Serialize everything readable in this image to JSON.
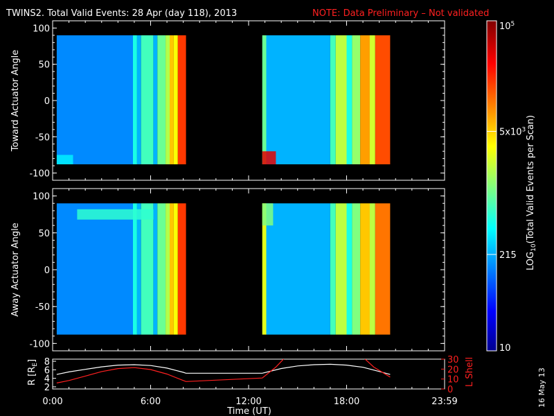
{
  "title": {
    "main": "TWINS2. Total Valid Events: 28 Apr (day 118), 2013",
    "note": "NOTE: Data Preliminary – Not validated",
    "note_color": "#ff2020"
  },
  "footer_date": "16 May 13",
  "chart_data": [
    {
      "type": "heatmap",
      "ylabel": "Toward Actuator Angle",
      "ylim": [
        -110,
        110
      ],
      "yticks": [
        "100",
        "50",
        "0",
        "-50",
        "-100"
      ],
      "xlim_hours": [
        0,
        24
      ],
      "data_y_range": [
        -88,
        90
      ],
      "segments": [
        {
          "start": "00:15",
          "end": "08:10",
          "stripes": [
            {
              "start": "00:15",
              "end": "04:55",
              "level": 0.26
            },
            {
              "start": "04:55",
              "end": "05:10",
              "level": 0.4
            },
            {
              "start": "05:10",
              "end": "05:25",
              "level": 0.3
            },
            {
              "start": "05:25",
              "end": "06:10",
              "level": 0.44
            },
            {
              "start": "06:10",
              "end": "06:25",
              "level": 0.3
            },
            {
              "start": "06:25",
              "end": "06:55",
              "level": 0.48
            },
            {
              "start": "06:55",
              "end": "07:10",
              "level": 0.55
            },
            {
              "start": "07:10",
              "end": "07:25",
              "level": 0.68
            },
            {
              "start": "07:25",
              "end": "07:40",
              "level": 0.62
            },
            {
              "start": "07:40",
              "end": "08:10",
              "level": 0.82
            }
          ],
          "hotspot": {
            "start": "00:15",
            "end": "01:15",
            "angle_from": -88,
            "angle_to": -75,
            "level": 0.36
          }
        },
        {
          "start": "12:50",
          "end": "20:40",
          "stripes": [
            {
              "start": "12:50",
              "end": "13:05",
              "level": 0.48
            },
            {
              "start": "13:05",
              "end": "17:00",
              "level": 0.3
            },
            {
              "start": "17:00",
              "end": "17:20",
              "level": 0.44
            },
            {
              "start": "17:20",
              "end": "18:00",
              "level": 0.56
            },
            {
              "start": "18:00",
              "end": "18:20",
              "level": 0.4
            },
            {
              "start": "18:20",
              "end": "18:50",
              "level": 0.52
            },
            {
              "start": "18:50",
              "end": "19:25",
              "level": 0.72
            },
            {
              "start": "19:25",
              "end": "19:45",
              "level": 0.58
            },
            {
              "start": "19:45",
              "end": "20:40",
              "level": 0.8
            }
          ],
          "hotspot": {
            "start": "12:50",
            "end": "13:40",
            "angle_from": -88,
            "angle_to": -70,
            "level": 0.9
          }
        }
      ]
    },
    {
      "type": "heatmap",
      "ylabel": "Away Actuator Angle",
      "ylim": [
        -110,
        110
      ],
      "yticks": [
        "100",
        "50",
        "0",
        "-50",
        "-100"
      ],
      "xlim_hours": [
        0,
        24
      ],
      "data_y_range": [
        -88,
        90
      ],
      "segments": [
        {
          "start": "00:15",
          "end": "08:10",
          "stripes": [
            {
              "start": "00:15",
              "end": "04:55",
              "level": 0.26
            },
            {
              "start": "04:55",
              "end": "05:10",
              "level": 0.4
            },
            {
              "start": "05:10",
              "end": "05:25",
              "level": 0.3
            },
            {
              "start": "05:25",
              "end": "06:10",
              "level": 0.44
            },
            {
              "start": "06:10",
              "end": "06:25",
              "level": 0.3
            },
            {
              "start": "06:25",
              "end": "06:55",
              "level": 0.48
            },
            {
              "start": "06:55",
              "end": "07:10",
              "level": 0.55
            },
            {
              "start": "07:10",
              "end": "07:25",
              "level": 0.68
            },
            {
              "start": "07:25",
              "end": "07:40",
              "level": 0.62
            },
            {
              "start": "07:40",
              "end": "08:10",
              "level": 0.82
            }
          ],
          "hotspot": {
            "start": "01:30",
            "end": "06:10",
            "angle_from": 68,
            "angle_to": 82,
            "level": 0.42
          }
        },
        {
          "start": "12:50",
          "end": "20:40",
          "stripes": [
            {
              "start": "12:50",
              "end": "13:05",
              "level": 0.6
            },
            {
              "start": "13:05",
              "end": "17:00",
              "level": 0.3
            },
            {
              "start": "17:00",
              "end": "17:20",
              "level": 0.44
            },
            {
              "start": "17:20",
              "end": "18:00",
              "level": 0.56
            },
            {
              "start": "18:00",
              "end": "18:20",
              "level": 0.4
            },
            {
              "start": "18:20",
              "end": "18:50",
              "level": 0.5
            },
            {
              "start": "18:50",
              "end": "19:25",
              "level": 0.68
            },
            {
              "start": "19:25",
              "end": "19:45",
              "level": 0.56
            },
            {
              "start": "19:45",
              "end": "20:40",
              "level": 0.76
            }
          ],
          "hotspot": {
            "start": "12:50",
            "end": "13:30",
            "angle_from": 60,
            "angle_to": 90,
            "level": 0.5
          }
        }
      ]
    },
    {
      "type": "line",
      "ylabel_left": "R [R",
      "ylabel_left_sub": "E",
      "ylabel_left_end": "]",
      "ylabel_right": "L Shell",
      "ylim_left": [
        1.5,
        8.5
      ],
      "yticks_left": [
        "8",
        "6",
        "4",
        "2"
      ],
      "ylim_right": [
        0,
        30
      ],
      "yticks_right": [
        "30",
        "20",
        "10",
        "0"
      ],
      "xlabel": "Time (UT)",
      "xticks": [
        "0:00",
        "6:00",
        "12:00",
        "18:00",
        "23:59"
      ],
      "series": [
        {
          "axis": "left",
          "color": "#ffffff",
          "x": [
            "00:15",
            "01:00",
            "02:00",
            "03:00",
            "04:00",
            "05:00",
            "06:00",
            "07:00",
            "08:00",
            "08:10",
            "12:50",
            "14:00",
            "15:00",
            "16:00",
            "17:00",
            "18:00",
            "19:00",
            "20:00",
            "20:40"
          ],
          "y": [
            4.9,
            5.5,
            6.1,
            6.7,
            7.1,
            7.2,
            7.0,
            6.4,
            5.4,
            5.2,
            5.2,
            6.3,
            6.9,
            7.2,
            7.3,
            7.1,
            6.6,
            5.6,
            4.9
          ]
        },
        {
          "axis": "right",
          "color": "#ff2020",
          "x": [
            "00:15",
            "01:00",
            "02:00",
            "03:00",
            "04:00",
            "05:00",
            "06:00",
            "07:00",
            "08:00",
            "08:10",
            "12:50",
            "13:40",
            "14:15"
          ],
          "y": [
            6.0,
            8.5,
            13.0,
            17.5,
            20.5,
            21.5,
            19.5,
            15.0,
            8.5,
            7.5,
            11.0,
            22.0,
            32.0
          ]
        },
        {
          "axis": "right",
          "color": "#ff2020",
          "x": [
            "19:00",
            "19:40",
            "20:40"
          ],
          "y": [
            32.0,
            22.0,
            12.0
          ]
        }
      ]
    }
  ],
  "colorbar": {
    "label_main": "LOG",
    "label_sub": "10",
    "label_rest": "(Total Valid Events per Scan)",
    "ticks": [
      {
        "base": "10",
        "sup": "5",
        "level": 1.0
      },
      {
        "base": "5x10",
        "sup": "3",
        "level": 0.665
      },
      {
        "base": "215",
        "sup": "",
        "level": 0.292
      },
      {
        "base": "10",
        "sup": "",
        "level": 0.0
      }
    ]
  }
}
